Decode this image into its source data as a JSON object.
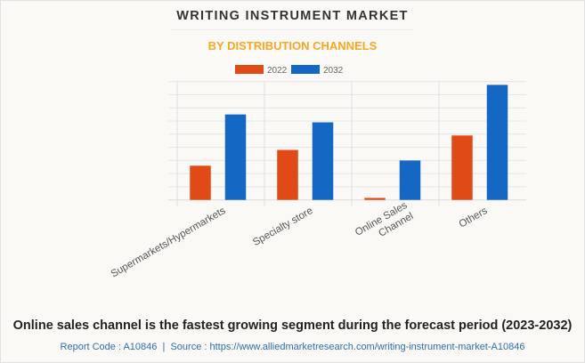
{
  "chart_data": {
    "type": "bar",
    "title": "WRITING INSTRUMENT MARKET",
    "subtitle": "BY DISTRIBUTION CHANNELS",
    "categories": [
      [
        "Supermarkets/Hypermarkets"
      ],
      [
        "Specialty store"
      ],
      [
        "Online Sales",
        "Channel"
      ],
      [
        "Others"
      ]
    ],
    "series": [
      {
        "name": "2022",
        "color": "#e04a16",
        "values": [
          2.6,
          3.8,
          0.15,
          4.9
        ]
      },
      {
        "name": "2032",
        "color": "#1467c2",
        "values": [
          6.5,
          5.9,
          3.0,
          8.75
        ]
      }
    ],
    "xlabel": "",
    "ylabel": "",
    "ylim": [
      0,
      9
    ],
    "grid": true,
    "legend": "top-center",
    "y_tick_labels_shown": false
  },
  "footer": {
    "caption": "Online sales channel is the fastest growing segment during the forecast period (2023-2032)",
    "source": "Report Code : A10846  |  Source : https://www.alliedmarketresearch.com/writing-instrument-market-A10846"
  }
}
